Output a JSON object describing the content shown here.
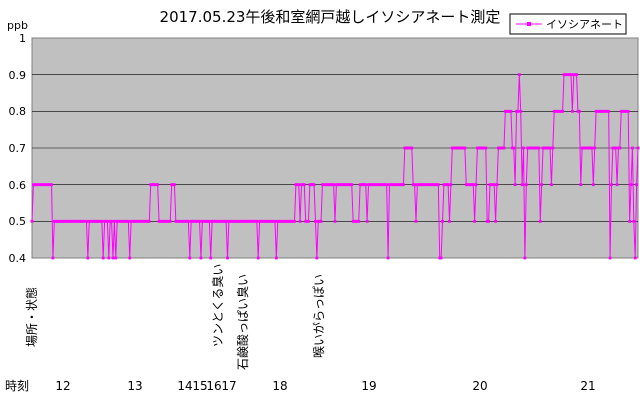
{
  "chart_data": {
    "type": "line",
    "title": "2017.05.23午後和室網戸越しイソシアネート測定",
    "ylabel": "ppb",
    "ylim": [
      0.4,
      1.0
    ],
    "yticks": [
      "0.4",
      "0.5",
      "0.6",
      "0.7",
      "0.8",
      "0.9",
      "1"
    ],
    "grid": true,
    "legend": {
      "position": "top-right"
    },
    "series": [
      {
        "name": "イソシアネート",
        "color": "#ff00ff",
        "values": [
          0.5,
          0.6,
          0.6,
          0.6,
          0.6,
          0.6,
          0.6,
          0.6,
          0.6,
          0.6,
          0.6,
          0.6,
          0.6,
          0.6,
          0.6,
          0.4,
          0.5,
          0.5,
          0.5,
          0.5,
          0.5,
          0.5,
          0.5,
          0.5,
          0.5,
          0.5,
          0.5,
          0.5,
          0.5,
          0.5,
          0.5,
          0.5,
          0.5,
          0.5,
          0.5,
          0.5,
          0.5,
          0.5,
          0.5,
          0.5,
          0.4,
          0.5,
          0.5,
          0.5,
          0.5,
          0.5,
          0.5,
          0.5,
          0.5,
          0.5,
          0.5,
          0.4,
          0.5,
          0.5,
          0.5,
          0.4,
          0.5,
          0.5,
          0.4,
          0.5,
          0.4,
          0.5,
          0.5,
          0.5,
          0.5,
          0.5,
          0.5,
          0.5,
          0.5,
          0.5,
          0.4,
          0.5,
          0.5,
          0.5,
          0.5,
          0.5,
          0.5,
          0.5,
          0.5,
          0.5,
          0.5,
          0.5,
          0.5,
          0.5,
          0.5,
          0.6,
          0.6,
          0.6,
          0.6,
          0.6,
          0.6,
          0.5,
          0.5,
          0.5,
          0.5,
          0.5,
          0.5,
          0.5,
          0.5,
          0.5,
          0.6,
          0.6,
          0.6,
          0.5,
          0.5,
          0.5,
          0.5,
          0.5,
          0.5,
          0.5,
          0.5,
          0.5,
          0.5,
          0.4,
          0.5,
          0.5,
          0.5,
          0.5,
          0.5,
          0.5,
          0.5,
          0.4,
          0.5,
          0.5,
          0.5,
          0.5,
          0.5,
          0.5,
          0.4,
          0.5,
          0.5,
          0.5,
          0.5,
          0.5,
          0.5,
          0.5,
          0.5,
          0.5,
          0.5,
          0.5,
          0.4,
          0.5,
          0.5,
          0.5,
          0.5,
          0.5,
          0.5,
          0.5,
          0.5,
          0.5,
          0.5,
          0.5,
          0.5,
          0.5,
          0.5,
          0.5,
          0.5,
          0.5,
          0.5,
          0.5,
          0.5,
          0.5,
          0.4,
          0.5,
          0.5,
          0.5,
          0.5,
          0.5,
          0.5,
          0.5,
          0.5,
          0.5,
          0.5,
          0.5,
          0.5,
          0.4,
          0.5,
          0.5,
          0.5,
          0.5,
          0.5,
          0.5,
          0.5,
          0.5,
          0.5,
          0.5,
          0.5,
          0.5,
          0.5,
          0.6,
          0.6,
          0.6,
          0.5,
          0.6,
          0.6,
          0.6,
          0.5,
          0.5,
          0.5,
          0.6,
          0.6,
          0.6,
          0.6,
          0.5,
          0.4,
          0.5,
          0.5,
          0.5,
          0.6,
          0.6,
          0.6,
          0.6,
          0.6,
          0.6,
          0.6,
          0.6,
          0.6,
          0.5,
          0.6,
          0.6,
          0.6,
          0.6,
          0.6,
          0.6,
          0.6,
          0.6,
          0.6,
          0.6,
          0.6,
          0.6,
          0.5,
          0.5,
          0.5,
          0.5,
          0.5,
          0.6,
          0.6,
          0.6,
          0.6,
          0.6,
          0.5,
          0.6,
          0.6,
          0.6,
          0.6,
          0.6,
          0.6,
          0.6,
          0.6,
          0.6,
          0.6,
          0.6,
          0.6,
          0.6,
          0.6,
          0.4,
          0.6,
          0.6,
          0.6,
          0.6,
          0.6,
          0.6,
          0.6,
          0.6,
          0.6,
          0.6,
          0.6,
          0.7,
          0.7,
          0.7,
          0.7,
          0.7,
          0.7,
          0.6,
          0.6,
          0.5,
          0.6,
          0.6,
          0.6,
          0.6,
          0.6,
          0.6,
          0.6,
          0.6,
          0.6,
          0.6,
          0.6,
          0.6,
          0.6,
          0.6,
          0.6,
          0.6,
          0.4,
          0.4,
          0.5,
          0.6,
          0.6,
          0.6,
          0.6,
          0.5,
          0.6,
          0.7,
          0.7,
          0.7,
          0.7,
          0.7,
          0.7,
          0.7,
          0.7,
          0.7,
          0.7,
          0.6,
          0.6,
          0.6,
          0.6,
          0.6,
          0.6,
          0.5,
          0.6,
          0.7,
          0.7,
          0.7,
          0.7,
          0.7,
          0.7,
          0.7,
          0.5,
          0.5,
          0.6,
          0.6,
          0.6,
          0.6,
          0.5,
          0.6,
          0.7,
          0.7,
          0.7,
          0.7,
          0.7,
          0.8,
          0.8,
          0.8,
          0.8,
          0.8,
          0.7,
          0.7,
          0.6,
          0.8,
          0.8,
          0.9,
          0.8,
          0.6,
          0.7,
          0.4,
          0.6,
          0.7,
          0.7,
          0.7,
          0.7,
          0.7,
          0.7,
          0.7,
          0.7,
          0.7,
          0.5,
          0.6,
          0.7,
          0.7,
          0.7,
          0.7,
          0.7,
          0.7,
          0.6,
          0.7,
          0.8,
          0.8,
          0.8,
          0.8,
          0.8,
          0.8,
          0.8,
          0.9,
          0.9,
          0.9,
          0.9,
          0.9,
          0.9,
          0.8,
          0.9,
          0.9,
          0.9,
          0.8,
          0.8,
          0.6,
          0.7,
          0.7,
          0.7,
          0.7,
          0.7,
          0.7,
          0.7,
          0.7,
          0.6,
          0.7,
          0.8,
          0.8,
          0.8,
          0.8,
          0.8,
          0.8,
          0.8,
          0.8,
          0.8,
          0.8,
          0.4,
          0.6,
          0.7,
          0.7,
          0.7,
          0.6,
          0.7,
          0.7,
          0.8,
          0.8,
          0.8,
          0.8,
          0.8,
          0.8,
          0.5,
          0.6,
          0.7,
          0.5,
          0.4,
          0.6,
          0.7
        ]
      }
    ],
    "x_ticks": [
      "12",
      "13",
      "14",
      "15",
      "16",
      "17",
      "18",
      "19",
      "20",
      "21"
    ],
    "row_labels": {
      "place": "場所・状態",
      "time": "時刻"
    },
    "annotations": [
      "ツンとくる臭い",
      "石鹸酸っぱい臭い",
      "喉いがらっぽい"
    ]
  }
}
